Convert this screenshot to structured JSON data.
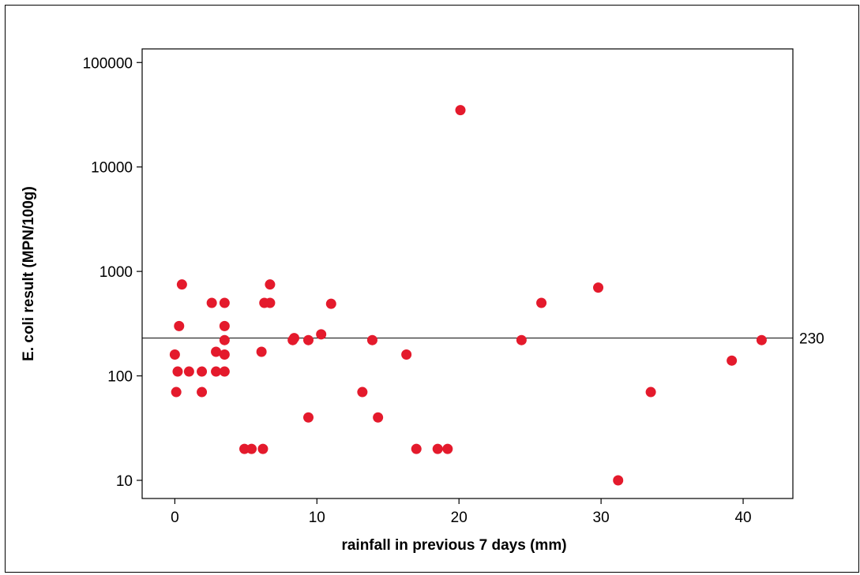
{
  "chart_data": {
    "type": "scatter",
    "title": "",
    "xlabel": "rainfall in previous 7 days (mm)",
    "ylabel": "E. coli result (MPN/100g)",
    "y_scale": "log",
    "xlim": [
      -2.3,
      43.5
    ],
    "ylim": [
      6.7,
      135000
    ],
    "x_ticks": [
      0,
      10,
      20,
      30,
      40
    ],
    "x_tick_labels": [
      "0",
      "10",
      "20",
      "30",
      "40"
    ],
    "y_ticks": [
      10,
      100,
      1000,
      10000,
      100000
    ],
    "y_tick_labels": [
      "10",
      "100",
      "1000",
      "10000",
      "100000"
    ],
    "reference_line": {
      "y": 230,
      "label": "230"
    },
    "marker_color": "#e41a2c",
    "grid": false,
    "points": [
      {
        "x": 0.0,
        "y": 160
      },
      {
        "x": 0.1,
        "y": 70
      },
      {
        "x": 0.2,
        "y": 110
      },
      {
        "x": 0.3,
        "y": 300
      },
      {
        "x": 0.5,
        "y": 750
      },
      {
        "x": 1.0,
        "y": 110
      },
      {
        "x": 1.9,
        "y": 110
      },
      {
        "x": 1.9,
        "y": 70
      },
      {
        "x": 2.6,
        "y": 500
      },
      {
        "x": 2.9,
        "y": 170
      },
      {
        "x": 2.9,
        "y": 110
      },
      {
        "x": 3.5,
        "y": 500
      },
      {
        "x": 3.5,
        "y": 300
      },
      {
        "x": 3.5,
        "y": 220
      },
      {
        "x": 3.5,
        "y": 160
      },
      {
        "x": 3.5,
        "y": 110
      },
      {
        "x": 4.9,
        "y": 20
      },
      {
        "x": 5.4,
        "y": 20
      },
      {
        "x": 6.1,
        "y": 170
      },
      {
        "x": 6.2,
        "y": 20
      },
      {
        "x": 6.3,
        "y": 500
      },
      {
        "x": 6.7,
        "y": 750
      },
      {
        "x": 6.7,
        "y": 500
      },
      {
        "x": 8.3,
        "y": 220
      },
      {
        "x": 8.4,
        "y": 230
      },
      {
        "x": 9.4,
        "y": 220
      },
      {
        "x": 9.4,
        "y": 40
      },
      {
        "x": 10.3,
        "y": 250
      },
      {
        "x": 11.0,
        "y": 490
      },
      {
        "x": 13.2,
        "y": 70
      },
      {
        "x": 13.9,
        "y": 220
      },
      {
        "x": 14.3,
        "y": 40
      },
      {
        "x": 16.3,
        "y": 160
      },
      {
        "x": 17.0,
        "y": 20
      },
      {
        "x": 18.5,
        "y": 20
      },
      {
        "x": 19.2,
        "y": 20
      },
      {
        "x": 20.1,
        "y": 35000
      },
      {
        "x": 24.4,
        "y": 220
      },
      {
        "x": 25.8,
        "y": 500
      },
      {
        "x": 29.8,
        "y": 700
      },
      {
        "x": 31.2,
        "y": 10
      },
      {
        "x": 33.5,
        "y": 70
      },
      {
        "x": 39.2,
        "y": 140
      },
      {
        "x": 41.3,
        "y": 220
      }
    ]
  }
}
